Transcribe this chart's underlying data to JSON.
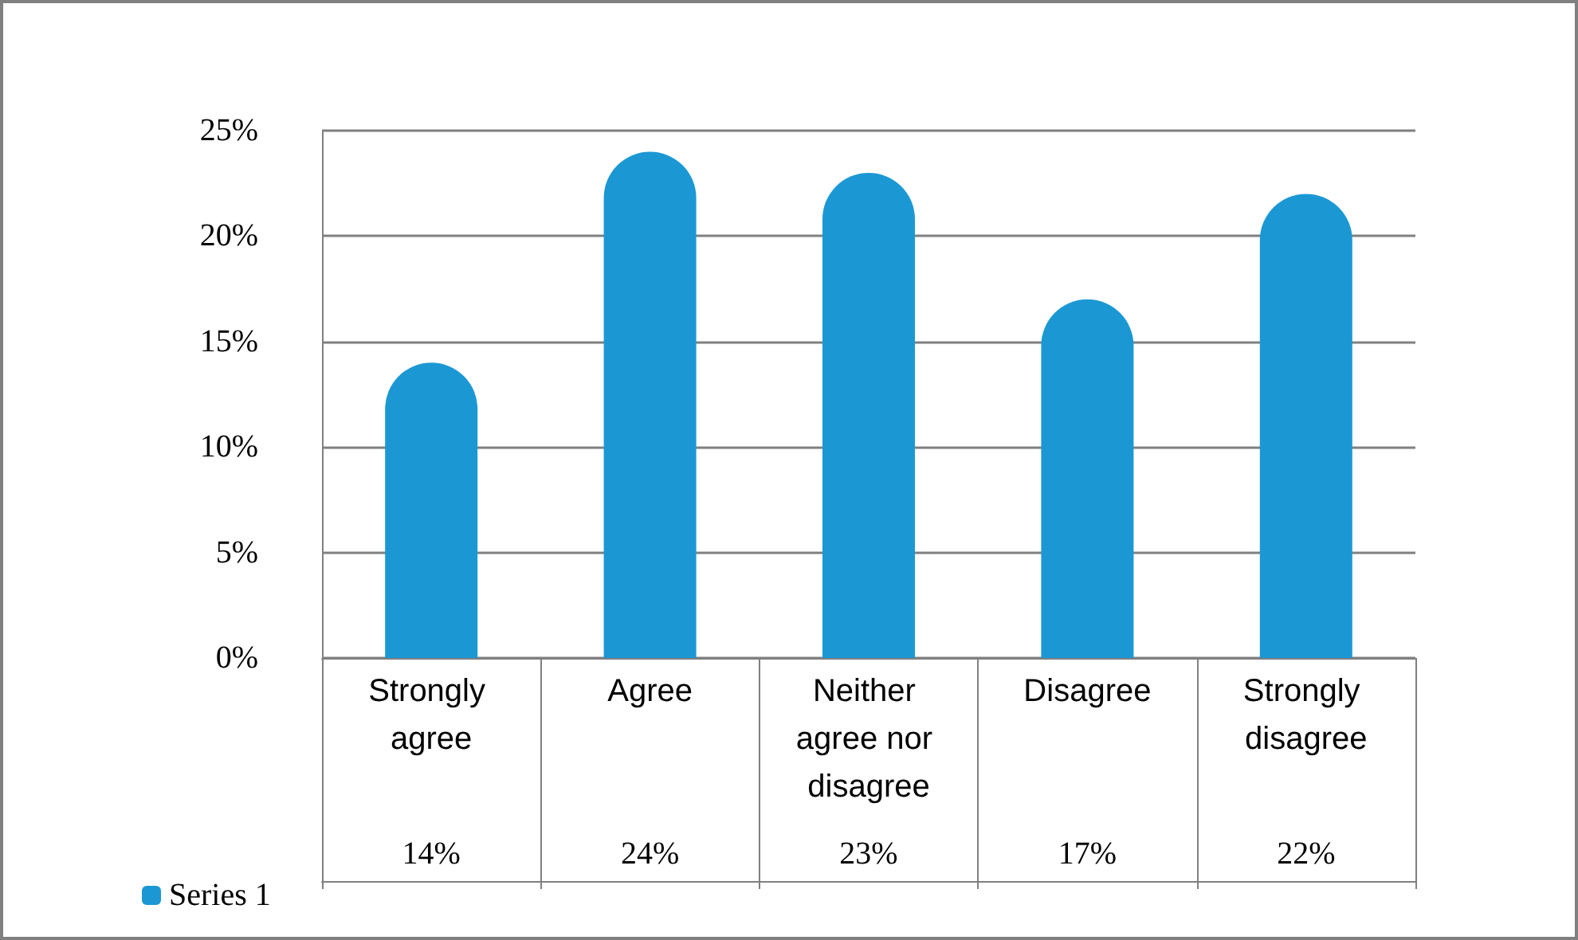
{
  "chart_data": {
    "type": "bar",
    "categories": [
      "Strongly agree",
      "Agree",
      "Neither agree nor disagree",
      "Disagree",
      "Strongly disagree"
    ],
    "series": [
      {
        "name": "Series 1",
        "color": "#1b98d4",
        "values": [
          14,
          24,
          23,
          17,
          22
        ],
        "value_labels": [
          "14%",
          "24%",
          "23%",
          "17%",
          "22%"
        ]
      }
    ],
    "ylim": [
      0,
      25
    ],
    "yticks": [
      {
        "value": 0,
        "label": "0%"
      },
      {
        "value": 5,
        "label": "5%"
      },
      {
        "value": 10,
        "label": "10%"
      },
      {
        "value": 15,
        "label": "15%"
      },
      {
        "value": 20,
        "label": "20%"
      },
      {
        "value": 25,
        "label": "25%"
      }
    ],
    "grid": true,
    "legend": "bottom left"
  }
}
